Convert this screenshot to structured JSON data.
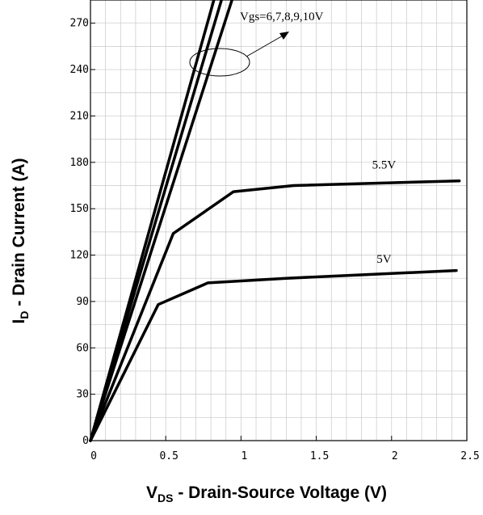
{
  "chart_data": {
    "type": "line",
    "xlabel": {
      "main": "V",
      "sub": "DS",
      "rest": " - Drain-Source Voltage (V)"
    },
    "ylabel": {
      "main": "I",
      "sub": "D",
      "rest": " - Drain Current (A)"
    },
    "xlim": [
      0,
      2.5
    ],
    "ylim": [
      0,
      285
    ],
    "x_ticks": [
      0,
      0.5,
      1,
      1.5,
      2,
      2.5
    ],
    "x_tick_labels": [
      "0",
      "0.5",
      "1",
      "1.5",
      "2",
      "2.5"
    ],
    "y_ticks": [
      0,
      30,
      60,
      90,
      120,
      150,
      180,
      210,
      240,
      270
    ],
    "y_tick_labels": [
      "0",
      "30",
      "60",
      "90",
      "120",
      "150",
      "180",
      "210",
      "240",
      "270"
    ],
    "grid": true,
    "series": [
      {
        "name": "Vgs=6,7,8,9,10V",
        "points": [
          [
            0,
            0
          ],
          [
            0.82,
            285
          ]
        ]
      },
      {
        "name": "Vgs=6,7,8,9,10V",
        "points": [
          [
            0,
            0
          ],
          [
            0.87,
            285
          ]
        ]
      },
      {
        "name": "Vgs=6,7,8,9,10V",
        "points": [
          [
            0,
            0
          ],
          [
            0.94,
            285
          ]
        ]
      },
      {
        "name": "5.5V",
        "points": [
          [
            0,
            0
          ],
          [
            0.55,
            134
          ],
          [
            0.95,
            161
          ],
          [
            1.35,
            165
          ],
          [
            2.45,
            168
          ]
        ]
      },
      {
        "name": "5V",
        "points": [
          [
            0,
            0
          ],
          [
            0.45,
            88
          ],
          [
            0.78,
            102
          ],
          [
            1.3,
            105
          ],
          [
            2.43,
            110
          ]
        ]
      }
    ],
    "annotations": [
      {
        "text": "Vgs=6,7,8,9,10V",
        "x": 1.27,
        "y": 272
      },
      {
        "text": "5.5V",
        "x": 1.95,
        "y": 176
      },
      {
        "text": "5V",
        "x": 1.95,
        "y": 115
      }
    ]
  }
}
